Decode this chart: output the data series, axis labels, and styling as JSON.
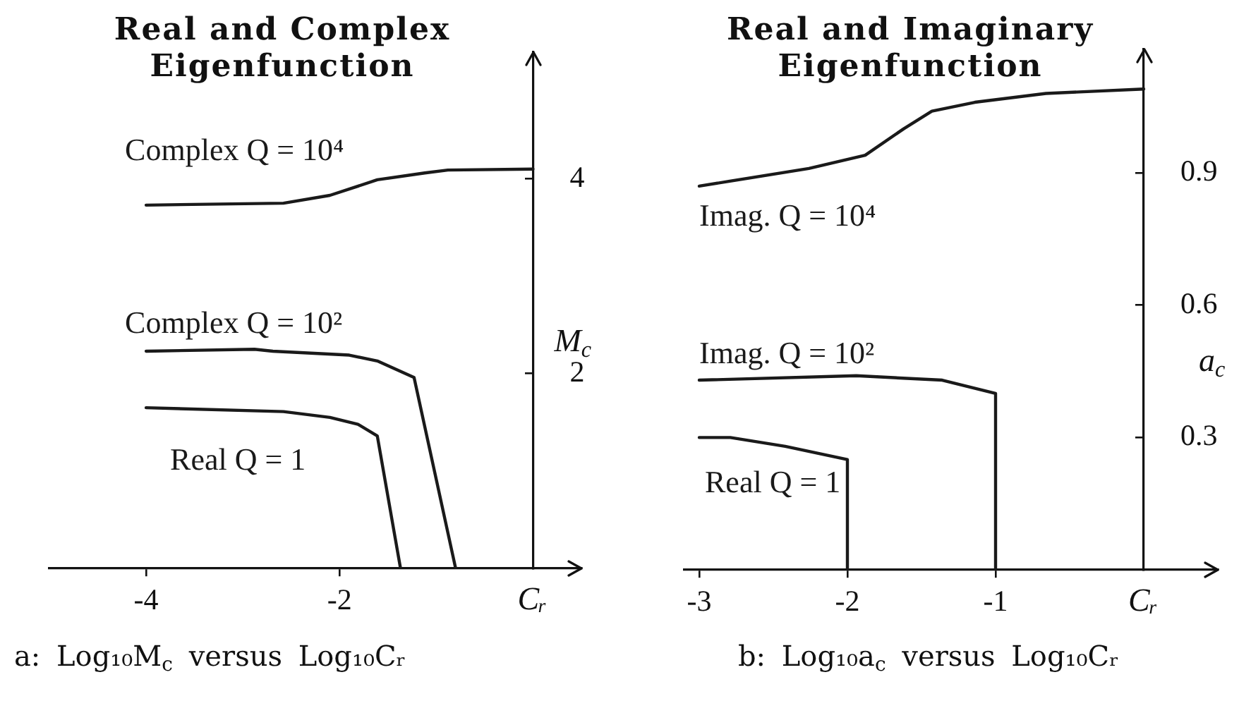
{
  "chart_data": [
    {
      "type": "line",
      "title": "Real and Complex Eigenfunction",
      "xlabel": "Cᵣ",
      "ylabel": "M$_{c}$",
      "xlim": [
        -5,
        0.5
      ],
      "ylim": [
        0,
        5.3
      ],
      "xticks": [
        -4,
        -2
      ],
      "yticks": [
        2,
        4
      ],
      "annotations": [
        "a: Log₁₀M$_{c}$ versus Log₁₀Cᵣ"
      ],
      "series": [
        {
          "name": "Complex Q = 10⁴",
          "color": "#1a1a1a",
          "x": [
            -4.0,
            -2.58,
            -2.1,
            -1.61,
            -1.12,
            -0.88,
            0
          ],
          "values": [
            3.73,
            3.75,
            3.83,
            3.99,
            4.06,
            4.09,
            4.1
          ]
        },
        {
          "name": "Complex Q = 10²",
          "color": "#1a1a1a",
          "x": [
            -4.0,
            -2.88,
            -2.69,
            -1.9,
            -1.61,
            -1.23,
            -0.8
          ],
          "values": [
            2.23,
            2.25,
            2.23,
            2.19,
            2.13,
            1.96,
            0
          ]
        },
        {
          "name": "Real Q = 1",
          "color": "#1a1a1a",
          "x": [
            -4.0,
            -2.58,
            -2.1,
            -1.81,
            -1.61,
            -1.37
          ],
          "values": [
            1.65,
            1.61,
            1.55,
            1.48,
            1.36,
            0
          ]
        }
      ]
    },
    {
      "type": "line",
      "title": "Real and Imaginary Eigenfunction",
      "xlabel": "Cᵣ",
      "ylabel": "a$_{c}$",
      "xlim": [
        -3.1,
        0.5
      ],
      "ylim": [
        0,
        1.18
      ],
      "xticks": [
        -3,
        -2,
        -1
      ],
      "yticks": [
        0.3,
        0.6,
        0.9
      ],
      "annotations": [
        "b: Log₁₀a$_{c}$ versus Log₁₀Cᵣ"
      ],
      "series": [
        {
          "name": "Imag. Q = 10⁴",
          "color": "#1a1a1a",
          "x": [
            -3.0,
            -2.26,
            -1.88,
            -1.62,
            -1.43,
            -1.14,
            -0.66,
            0
          ],
          "values": [
            0.87,
            0.91,
            0.94,
            1.0,
            1.04,
            1.06,
            1.08,
            1.09
          ]
        },
        {
          "name": "Imag. Q = 10²",
          "color": "#1a1a1a",
          "x": [
            -3.0,
            -1.94,
            -1.36,
            -1.0,
            -1.0
          ],
          "values": [
            0.43,
            0.44,
            0.43,
            0.4,
            0
          ]
        },
        {
          "name": "Real Q = 1",
          "color": "#1a1a1a",
          "x": [
            -3.0,
            -2.79,
            -2.42,
            -2.0,
            -2.0
          ],
          "values": [
            0.3,
            0.3,
            0.28,
            0.25,
            0
          ]
        }
      ]
    }
  ]
}
